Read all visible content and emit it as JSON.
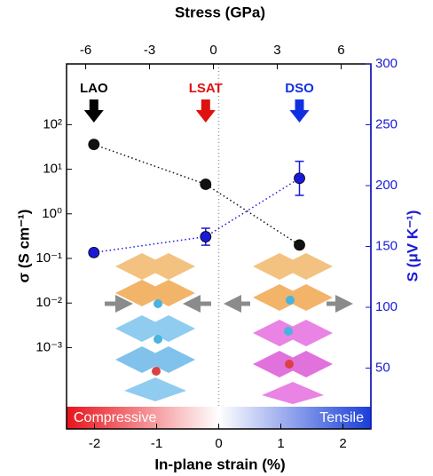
{
  "chart_data": {
    "type": "scatter",
    "xlabel": "In-plane strain (%)",
    "x2label": "Stress (GPa)",
    "ylabel": "σ (S cm⁻¹)",
    "y2label": "S (μV K⁻¹)",
    "xlim": [
      -2.45,
      2.45
    ],
    "xticks": [
      -2,
      -1,
      0,
      1,
      2
    ],
    "x2lim": [
      -6.9,
      7.4
    ],
    "x2ticks": [
      -6,
      -3,
      0,
      3,
      6
    ],
    "ylim": [
      1.5e-05,
      2300
    ],
    "ylog": true,
    "yticks": [
      {
        "value": 0.001,
        "label": "10⁻³"
      },
      {
        "value": 0.01,
        "label": "10⁻²"
      },
      {
        "value": 0.1,
        "label": "10⁻¹"
      },
      {
        "value": 1,
        "label": "10⁰"
      },
      {
        "value": 10,
        "label": "10¹"
      },
      {
        "value": 100,
        "label": "10²"
      }
    ],
    "y2lim": [
      0,
      300
    ],
    "y2ticks": [
      50,
      100,
      150,
      200,
      250,
      300
    ],
    "series": [
      {
        "color": "#111111",
        "x": [
          -2.01,
          -0.21,
          1.3
        ],
        "values": [
          36,
          4.6,
          0.2
        ]
      },
      {
        "color": "#1a1ad6",
        "axis": "y2",
        "x": [
          -2.01,
          -0.21,
          1.3
        ],
        "values": [
          145,
          158,
          206
        ],
        "errors": [
          null,
          7,
          14
        ]
      }
    ],
    "annotations": [
      "LAO",
      "LSAT",
      "DSO"
    ],
    "annotation_colors": [
      "#000000",
      "#e01010",
      "#1030e0"
    ],
    "regions": [
      "Compressive",
      "Tensile"
    ]
  }
}
